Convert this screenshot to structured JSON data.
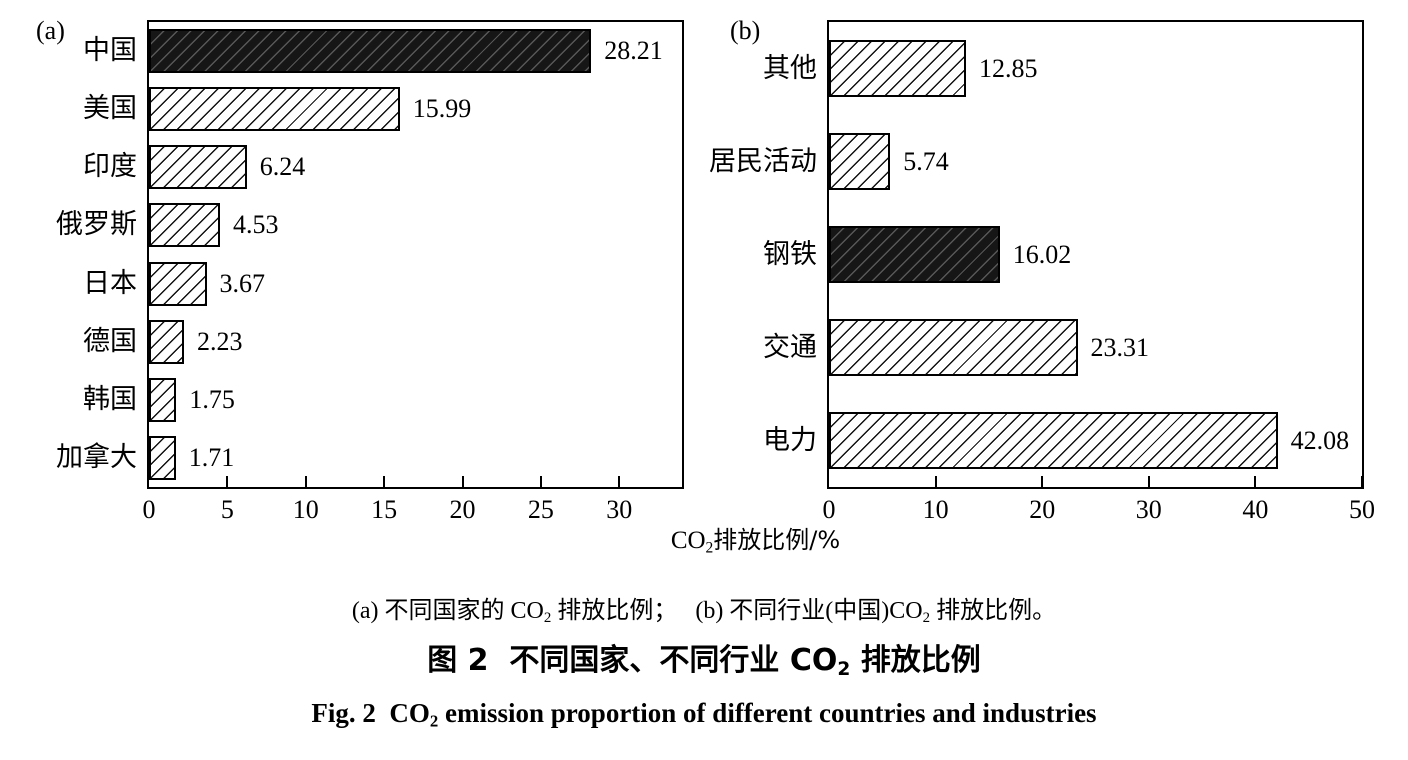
{
  "figure": {
    "panel_a_label": "(a)",
    "panel_b_label": "(b)",
    "xlabel": {
      "pre": "CO",
      "sub": "2",
      "post": "排放比例/%"
    },
    "captions": {
      "line1": [
        [
          "t",
          "(a) 不同国家的 CO"
        ],
        [
          "s",
          "2"
        ],
        [
          "t",
          " 排放比例；   (b) 不同行业(中国)CO"
        ],
        [
          "s",
          "2"
        ],
        [
          "t",
          " 排放比例。"
        ]
      ],
      "line2": [
        [
          "t",
          "图 2  不同国家、不同行业 CO"
        ],
        [
          "s",
          "2"
        ],
        [
          "t",
          " 排放比例"
        ]
      ],
      "line3": [
        [
          "t",
          "Fig. 2  CO"
        ],
        [
          "s",
          "2"
        ],
        [
          "t",
          " emission proportion of different countries and industries"
        ]
      ]
    },
    "colors": {
      "ink": "#000000",
      "dark_bar": "#161616",
      "light_bar": "#ffffff"
    }
  },
  "chart_data": [
    {
      "panel": "(a)",
      "type": "bar",
      "orientation": "horizontal",
      "title": "不同国家的CO2排放比例",
      "xlabel": "CO2排放比例/%",
      "categories": [
        "中国",
        "美国",
        "印度",
        "俄罗斯",
        "日本",
        "德国",
        "韩国",
        "加拿大"
      ],
      "values": [
        28.21,
        15.99,
        6.24,
        4.53,
        3.67,
        2.23,
        1.75,
        1.71
      ],
      "value_labels": [
        "28.21",
        "15.99",
        "6.24",
        "4.53",
        "3.67",
        "2.23",
        "1.75",
        "1.71"
      ],
      "dark_index": 0,
      "xlim": [
        0,
        34
      ],
      "ticks": [
        0,
        5,
        10,
        15,
        20,
        25,
        30
      ],
      "grid": false,
      "legend": false,
      "bar_style": "diagonal-hatch"
    },
    {
      "panel": "(b)",
      "type": "bar",
      "orientation": "horizontal",
      "title": "不同行业(中国)CO2排放比例",
      "xlabel": "CO2排放比例/%",
      "categories": [
        "其他",
        "居民活动",
        "钢铁",
        "交通",
        "电力"
      ],
      "values": [
        12.85,
        5.74,
        16.02,
        23.31,
        42.08
      ],
      "value_labels": [
        "12.85",
        "5.74",
        "16.02",
        "23.31",
        "42.08"
      ],
      "dark_index": 2,
      "xlim": [
        0,
        50
      ],
      "ticks": [
        0,
        10,
        20,
        30,
        40,
        50
      ],
      "grid": false,
      "legend": false,
      "bar_style": "diagonal-hatch"
    }
  ]
}
